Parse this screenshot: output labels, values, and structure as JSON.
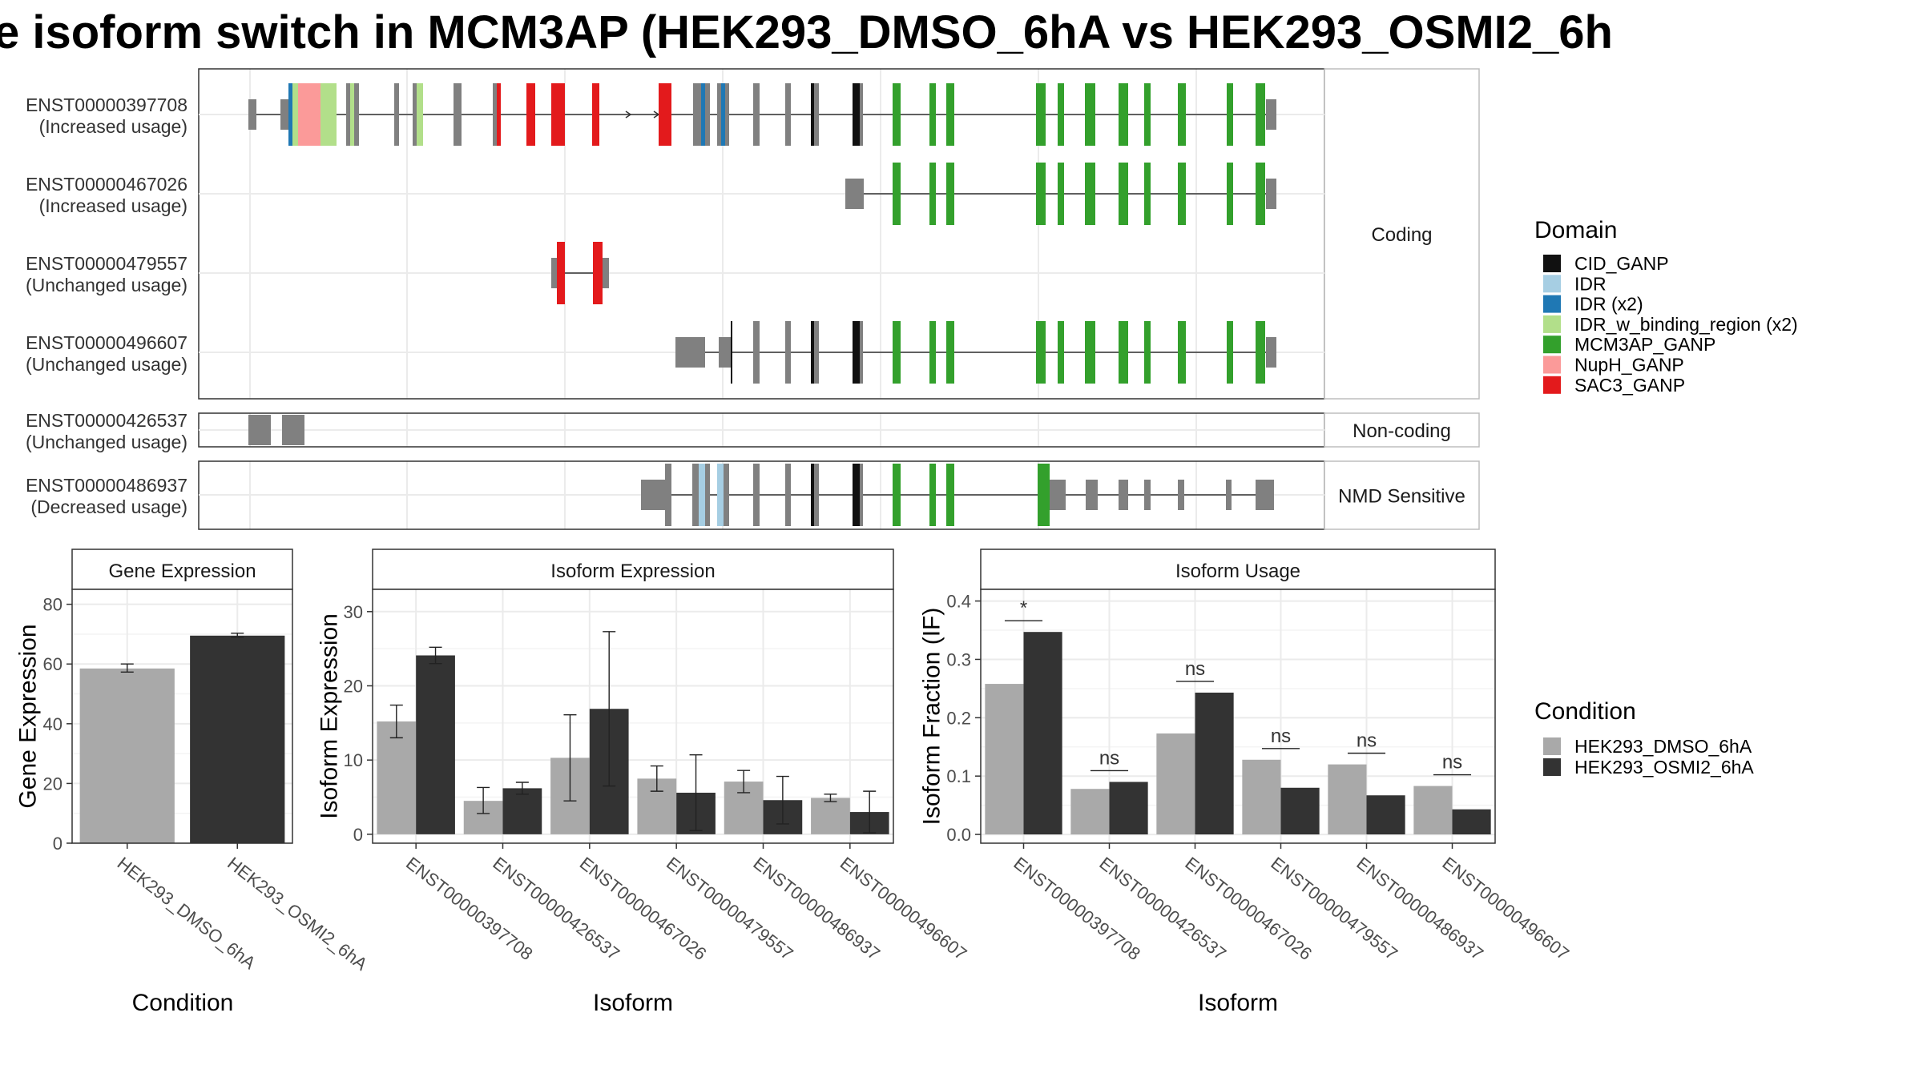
{
  "title": "e isoform switch in MCM3AP (HEK293_DMSO_6hA vs HEK293_OSMI2_6h",
  "structure": {
    "groups": [
      {
        "label": "Coding",
        "tracks": [
          {
            "id": "ENST00000397708",
            "usage": "(Increased usage)"
          },
          {
            "id": "ENST00000467026",
            "usage": "(Increased usage)"
          },
          {
            "id": "ENST00000479557",
            "usage": "(Unchanged usage)"
          },
          {
            "id": "ENST00000496607",
            "usage": "(Unchanged usage)"
          }
        ]
      },
      {
        "label": "Non-coding",
        "tracks": [
          {
            "id": "ENST00000426537",
            "usage": "(Unchanged usage)"
          }
        ]
      },
      {
        "label": "NMD Sensitive",
        "tracks": [
          {
            "id": "ENST00000486937",
            "usage": "(Decreased usage)"
          }
        ]
      }
    ]
  },
  "legend_domain": {
    "title": "Domain",
    "items": [
      {
        "label": "CID_GANP",
        "color": "#111111"
      },
      {
        "label": "IDR",
        "color": "#a6cee3"
      },
      {
        "label": "IDR (x2)",
        "color": "#1f78b4"
      },
      {
        "label": "IDR_w_binding_region (x2)",
        "color": "#b2df8a"
      },
      {
        "label": "MCM3AP_GANP",
        "color": "#33a02c"
      },
      {
        "label": "NupH_GANP",
        "color": "#fb9a99"
      },
      {
        "label": "SAC3_GANP",
        "color": "#e31a1c"
      }
    ]
  },
  "legend_condition": {
    "title": "Condition",
    "items": [
      {
        "label": "HEK293_DMSO_6hA",
        "color": "#a9a9a9"
      },
      {
        "label": "HEK293_OSMI2_6hA",
        "color": "#333333"
      }
    ]
  },
  "chart_data": [
    {
      "type": "bar",
      "panel": "Gene Expression",
      "xlabel": "Condition",
      "ylabel": "Gene Expression",
      "ylim": [
        0,
        85
      ],
      "yticks": [
        0,
        20,
        40,
        60,
        80
      ],
      "categories": [
        "HEK293_DMSO_6hA",
        "HEK293_OSMI2_6hA"
      ],
      "values": [
        58.5,
        69.5
      ],
      "errors": [
        [
          57.3,
          60.0
        ],
        [
          69.0,
          70.3
        ]
      ],
      "colors": [
        "#a9a9a9",
        "#333333"
      ]
    },
    {
      "type": "bar",
      "panel": "Isoform Expression",
      "xlabel": "Isoform",
      "ylabel": "Isoform Expression",
      "ylim": [
        -1.2,
        33
      ],
      "yticks": [
        0,
        10,
        20,
        30
      ],
      "categories": [
        "ENST00000397708",
        "ENST00000426537",
        "ENST00000467026",
        "ENST00000479557",
        "ENST00000486937",
        "ENST00000496607"
      ],
      "series": [
        {
          "name": "HEK293_DMSO_6hA",
          "values": [
            15.2,
            4.5,
            10.3,
            7.5,
            7.1,
            4.9
          ],
          "errors": [
            [
              13.0,
              17.4
            ],
            [
              2.8,
              6.3
            ],
            [
              4.5,
              16.1
            ],
            [
              5.8,
              9.2
            ],
            [
              5.6,
              8.6
            ],
            [
              4.4,
              5.4
            ]
          ]
        },
        {
          "name": "HEK293_OSMI2_6hA",
          "values": [
            24.1,
            6.2,
            16.9,
            5.6,
            4.6,
            3.0
          ],
          "errors": [
            [
              23.0,
              25.2
            ],
            [
              5.4,
              7.0
            ],
            [
              6.5,
              27.3
            ],
            [
              0.5,
              10.7
            ],
            [
              1.4,
              7.8
            ],
            [
              0.2,
              5.8
            ]
          ]
        }
      ]
    },
    {
      "type": "bar",
      "panel": "Isoform Usage",
      "xlabel": "Isoform",
      "ylabel": "Isoform Fraction (IF)",
      "ylim": [
        -0.015,
        0.42
      ],
      "yticks": [
        0.0,
        0.1,
        0.2,
        0.3,
        0.4
      ],
      "ytick_labels": [
        "0.0",
        "0.1",
        "0.2",
        "0.3",
        "0.4"
      ],
      "categories": [
        "ENST00000397708",
        "ENST00000426537",
        "ENST00000467026",
        "ENST00000479557",
        "ENST00000486937",
        "ENST00000496607"
      ],
      "series": [
        {
          "name": "HEK293_DMSO_6hA",
          "values": [
            0.258,
            0.078,
            0.173,
            0.128,
            0.12,
            0.083
          ]
        },
        {
          "name": "HEK293_OSMI2_6hA",
          "values": [
            0.347,
            0.09,
            0.243,
            0.08,
            0.067,
            0.043
          ]
        }
      ],
      "significance": [
        "*",
        "ns",
        "ns",
        "ns",
        "ns",
        "ns"
      ]
    }
  ]
}
